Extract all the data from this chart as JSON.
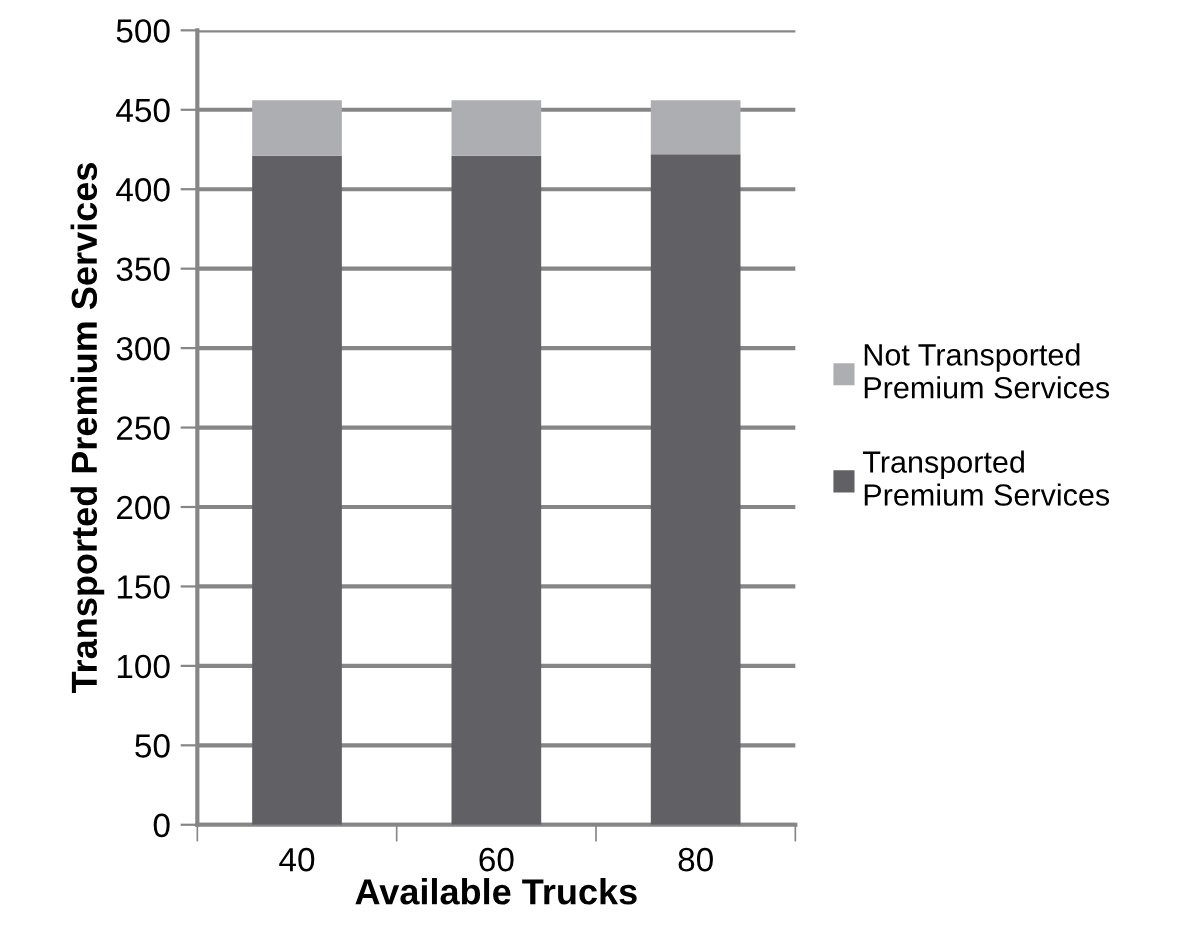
{
  "chart_data": {
    "type": "bar",
    "stacked": true,
    "xlabel": "Available Trucks",
    "ylabel": "Transported Premium Services",
    "categories": [
      "40",
      "60",
      "80"
    ],
    "series": [
      {
        "name": "Transported Premium Services",
        "color": "#616165",
        "values": [
          421,
          421,
          422
        ]
      },
      {
        "name": "Not Transported Premium Services",
        "color": "#adaeb1",
        "values": [
          35,
          35,
          34
        ]
      }
    ],
    "ylim": [
      0,
      500
    ],
    "yticks": [
      0,
      50,
      100,
      150,
      200,
      250,
      300,
      350,
      400,
      450,
      500
    ],
    "grid": "y",
    "legend": "right"
  }
}
